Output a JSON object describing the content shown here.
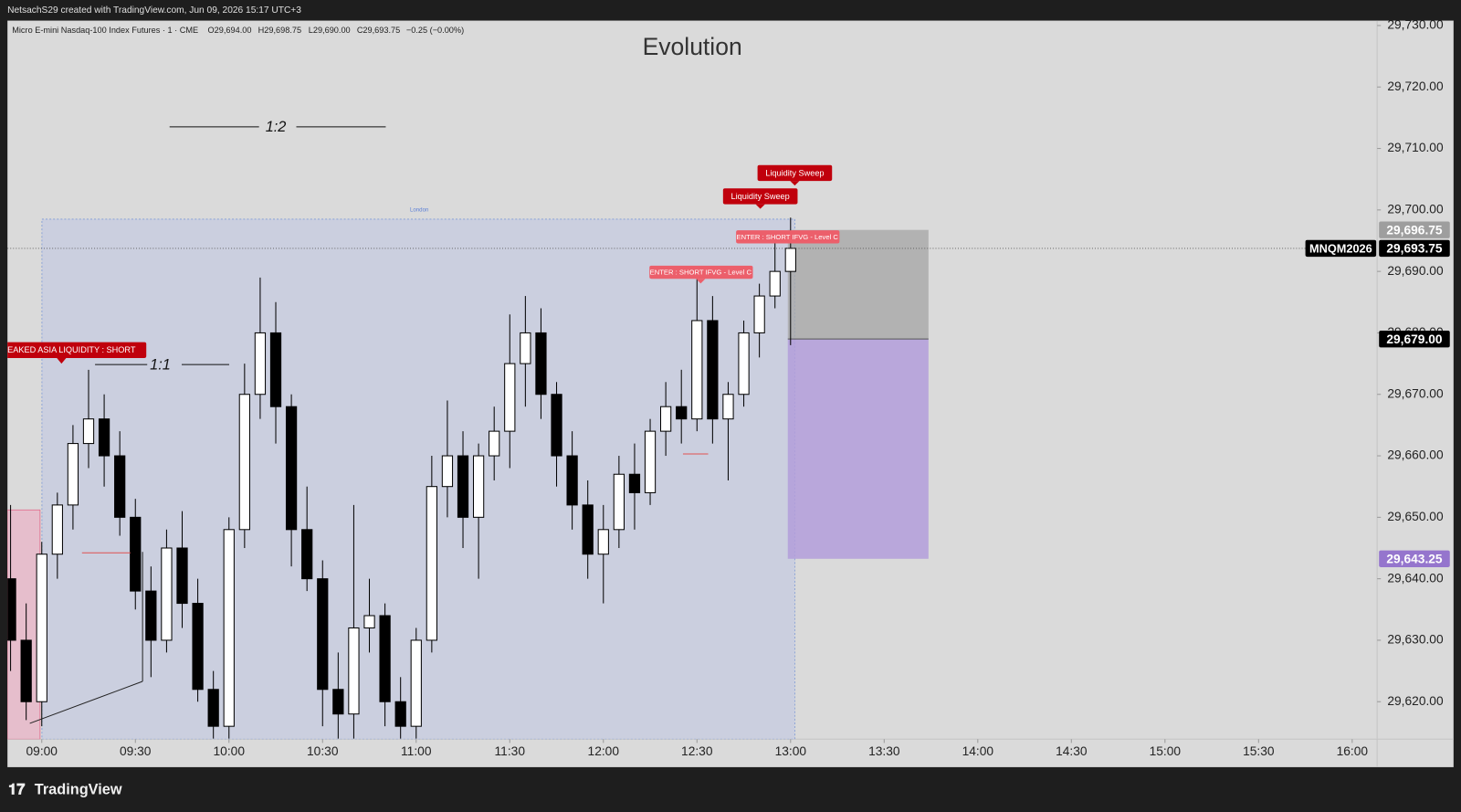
{
  "header": {
    "text": "NetsachS29 created with TradingView.com, Jun 09, 2026 15:17 UTC+3"
  },
  "chart_data": {
    "type": "candlestick",
    "title": "Evolution",
    "symbol": "Micro E-mini Nasdaq-100 Index Futures · 1 · CME",
    "ohlc_text": [
      "O29,694.00",
      "H29,698.75",
      "L29,690.00",
      "C29,693.75",
      "−0.25 (−0.00%)"
    ],
    "series_name": "MNQM2026",
    "x": [
      "08:50",
      "08:55",
      "09:00",
      "09:05",
      "09:10",
      "09:15",
      "09:20",
      "09:25",
      "09:30",
      "09:35",
      "09:40",
      "09:45",
      "09:50",
      "09:55",
      "10:00",
      "10:05",
      "10:10",
      "10:15",
      "10:20",
      "10:25",
      "10:30",
      "10:35",
      "10:40",
      "10:45",
      "10:50",
      "10:55",
      "11:00",
      "11:05",
      "11:10",
      "11:15",
      "11:20",
      "11:25",
      "11:30",
      "11:35",
      "11:40",
      "11:45",
      "11:50",
      "11:55",
      "12:00",
      "12:05",
      "12:10",
      "12:15",
      "12:20",
      "12:25",
      "12:30",
      "12:35",
      "12:40",
      "12:45",
      "12:50",
      "12:55",
      "13:00"
    ],
    "open": [
      29640,
      29630,
      29620,
      29644,
      29652,
      29662,
      29666,
      29660,
      29650,
      29638,
      29630,
      29645,
      29636,
      29622,
      29616,
      29648,
      29670,
      29680,
      29668,
      29648,
      29640,
      29622,
      29618,
      29632,
      29634,
      29620,
      29616,
      29630,
      29655,
      29660,
      29650,
      29660,
      29664,
      29675,
      29680,
      29670,
      29660,
      29652,
      29644,
      29648,
      29657,
      29654,
      29664,
      29668,
      29666,
      29682,
      29666,
      29670,
      29680,
      29686,
      29690
    ],
    "high": [
      29652,
      29636,
      29646,
      29654,
      29665,
      29674,
      29670,
      29664,
      29653,
      29642,
      29648,
      29651,
      29640,
      29625,
      29650,
      29675,
      29689,
      29685,
      29670,
      29655,
      29643,
      29628,
      29652,
      29640,
      29636,
      29624,
      29632,
      29660,
      29669,
      29664,
      29662,
      29668,
      29683,
      29686,
      29684,
      29672,
      29664,
      29656,
      29652,
      29660,
      29662,
      29666,
      29672,
      29674,
      29690,
      29686,
      29672,
      29682,
      29688,
      29696.5,
      29698.75
    ],
    "low": [
      29625,
      29617,
      29616,
      29640,
      29648,
      29658,
      29655,
      29647,
      29635,
      29624,
      29628,
      29632,
      29620,
      29614,
      29614,
      29645,
      29666,
      29662,
      29642,
      29638,
      29616,
      29614,
      29614,
      29628,
      29616,
      29614,
      29614,
      29628,
      29650,
      29645,
      29640,
      29656,
      29658,
      29668,
      29666,
      29655,
      29648,
      29640,
      29636,
      29645,
      29648,
      29652,
      29660,
      29662,
      29664,
      29662,
      29656,
      29668,
      29676,
      29684,
      29678
    ],
    "close": [
      29630,
      29620,
      29644,
      29652,
      29662,
      29666,
      29660,
      29650,
      29638,
      29630,
      29645,
      29636,
      29622,
      29616,
      29648,
      29670,
      29680,
      29668,
      29648,
      29640,
      29622,
      29618,
      29632,
      29634,
      29620,
      29616,
      29630,
      29655,
      29660,
      29650,
      29660,
      29664,
      29675,
      29680,
      29670,
      29660,
      29652,
      29644,
      29648,
      29657,
      29654,
      29664,
      29668,
      29666,
      29682,
      29666,
      29670,
      29680,
      29686,
      29690,
      29693.75
    ],
    "up_color": "#ffffff",
    "down_color": "#000000",
    "wick_color": "#000000",
    "xlim": [
      "08:49",
      "16:08"
    ],
    "xticks": [
      "09:00",
      "09:30",
      "10:00",
      "10:30",
      "11:00",
      "11:30",
      "12:00",
      "12:30",
      "13:00",
      "13:30",
      "14:00",
      "14:30",
      "15:00",
      "15:30",
      "16:00"
    ],
    "ylim": [
      29613.9,
      29730.8
    ],
    "yticks": [
      {
        "value": 29620,
        "label": "29,620.00"
      },
      {
        "value": 29630,
        "label": "29,630.00"
      },
      {
        "value": 29640,
        "label": "29,640.00"
      },
      {
        "value": 29650,
        "label": "29,650.00"
      },
      {
        "value": 29660,
        "label": "29,660.00"
      },
      {
        "value": 29670,
        "label": "29,670.00"
      },
      {
        "value": 29680,
        "label": "29,680.00"
      },
      {
        "value": 29690,
        "label": "29,690.00"
      },
      {
        "value": 29700,
        "label": "29,700.00"
      },
      {
        "value": 29710,
        "label": "29,710.00"
      },
      {
        "value": 29720,
        "label": "29,720.00"
      },
      {
        "value": 29730,
        "label": "29,730.00"
      }
    ],
    "price_labels": [
      {
        "value": 29696.75,
        "label": "29,696.75",
        "color": "#9e9e9e"
      },
      {
        "value": 29693.75,
        "label": "29,693.75",
        "color": "#000000"
      },
      {
        "value": 29679,
        "label": "29,679.00",
        "color": "#000000"
      },
      {
        "value": 29643.25,
        "label": "29,643.25",
        "color": "#9575cd"
      }
    ],
    "annotations": [
      "1:2",
      "1:1",
      "Liquidity Sweep",
      "Liquidity Sweep",
      "ENTER : SHORT IFVG - Level C",
      "ENTER : SHORT IFVG - Level C",
      "EAKED ASIA LIQUIDITY : SHORT",
      "London"
    ],
    "brand": "TradingView"
  }
}
